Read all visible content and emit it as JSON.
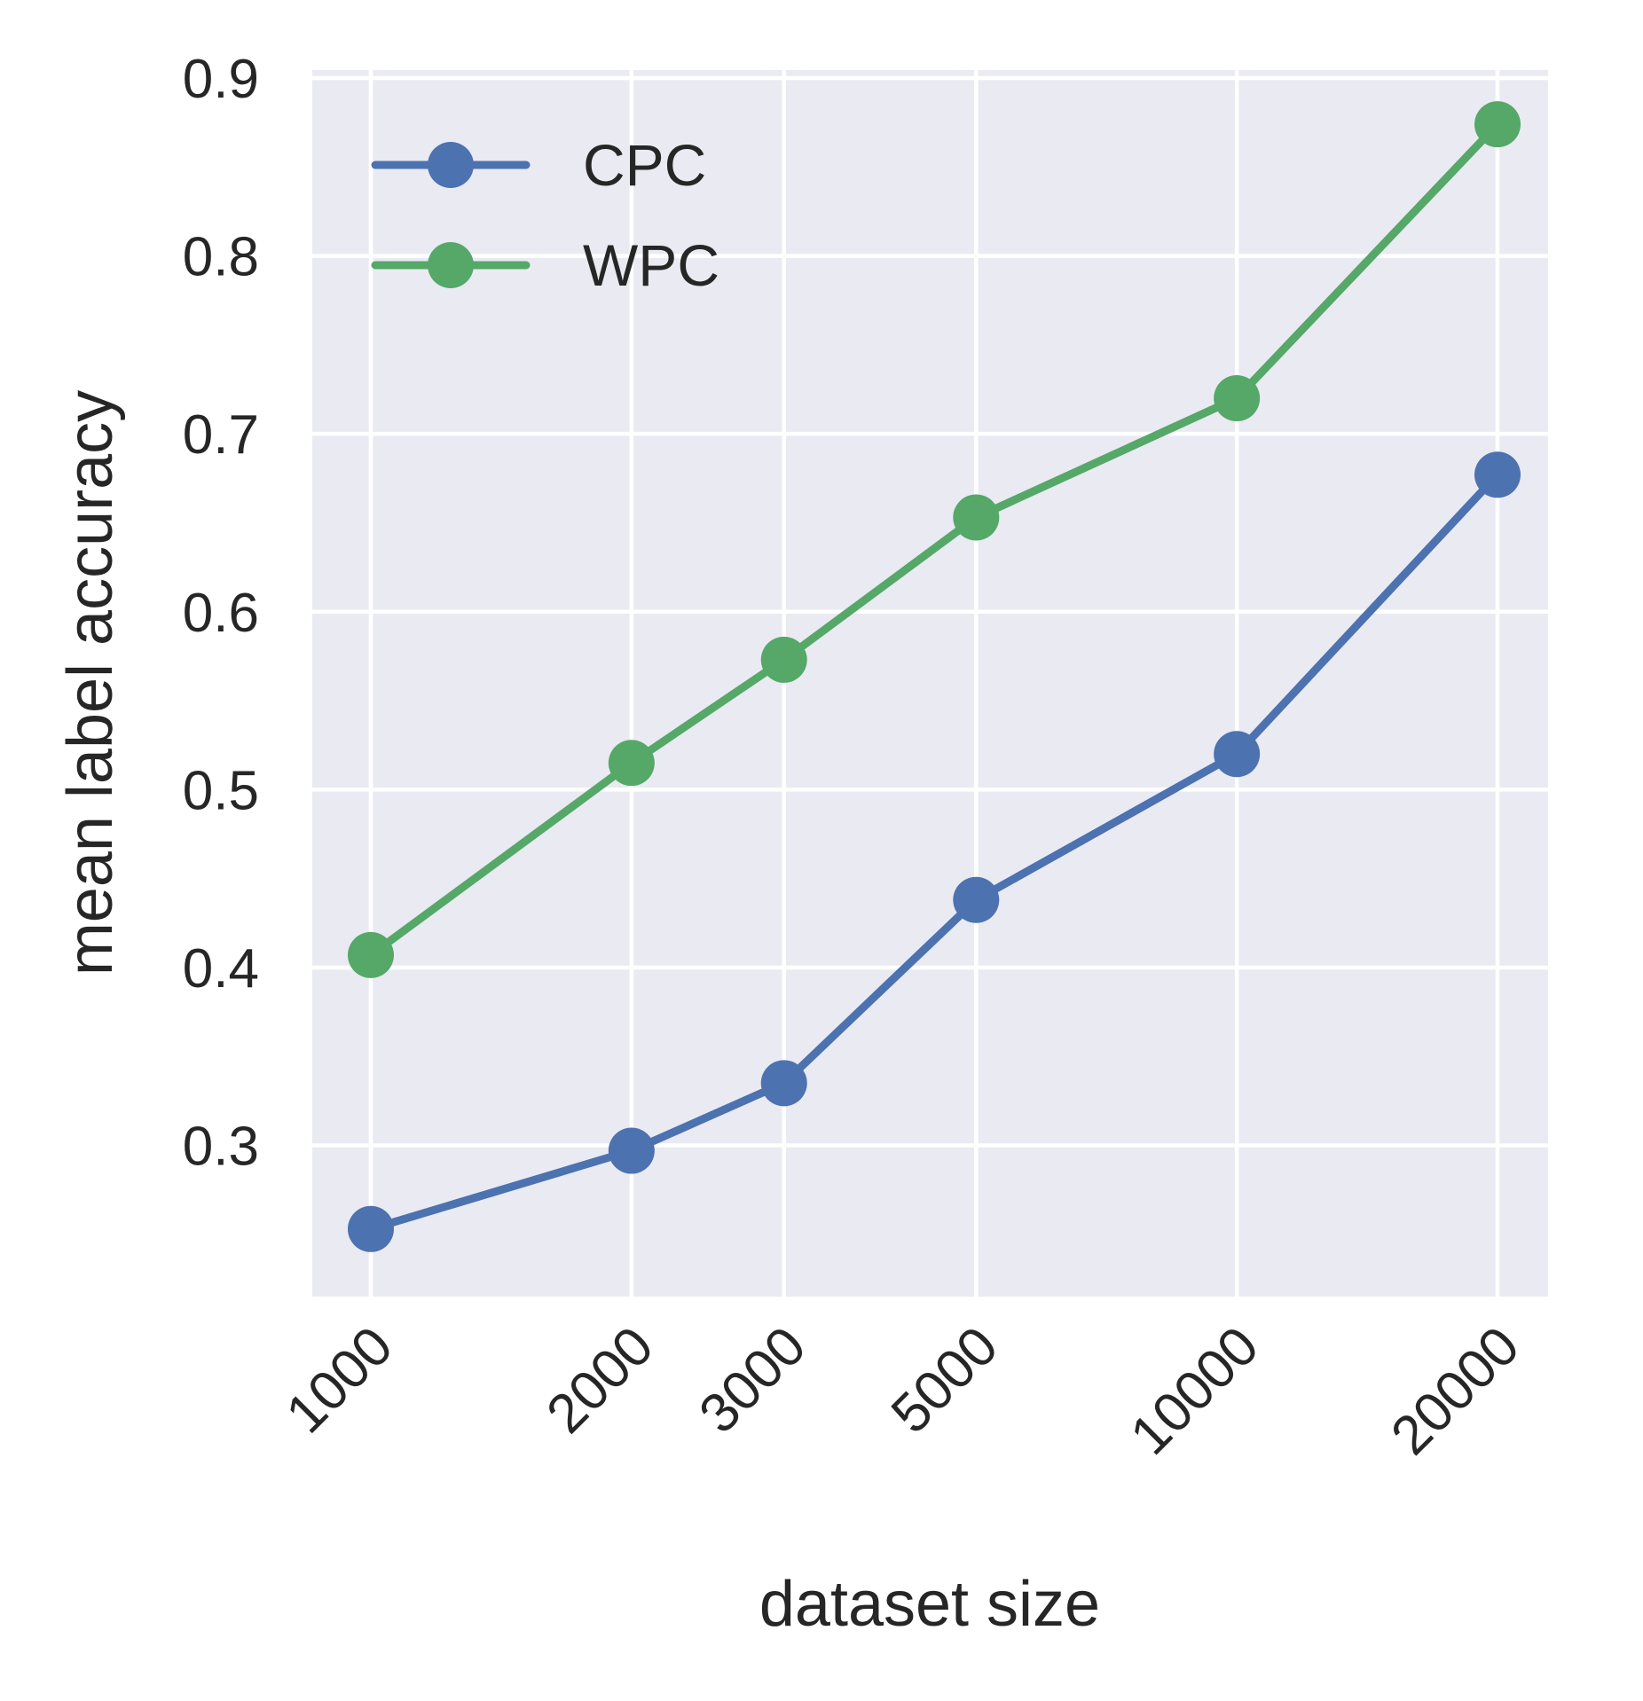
{
  "chart_data": {
    "type": "line",
    "xscale": "log",
    "x": [
      1000,
      2000,
      3000,
      5000,
      10000,
      20000
    ],
    "x_tick_labels": [
      "1000",
      "2000",
      "3000",
      "5000",
      "10000",
      "20000"
    ],
    "xlabel": "dataset size",
    "ylabel": "mean label accuracy",
    "ylim": [
      0.22,
      0.9
    ],
    "y_ticks": [
      0.3,
      0.4,
      0.5,
      0.6,
      0.7,
      0.8,
      0.9
    ],
    "y_tick_labels": [
      "0.3",
      "0.4",
      "0.5",
      "0.6",
      "0.7",
      "0.8",
      "0.9"
    ],
    "grid": true,
    "legend_position": "top-left",
    "series": [
      {
        "name": "CPC",
        "color": "#4c72b0",
        "values": [
          0.253,
          0.297,
          0.335,
          0.438,
          0.52,
          0.677
        ]
      },
      {
        "name": "WPC",
        "color": "#55a868",
        "values": [
          0.407,
          0.515,
          0.573,
          0.653,
          0.72,
          0.874
        ]
      }
    ]
  }
}
